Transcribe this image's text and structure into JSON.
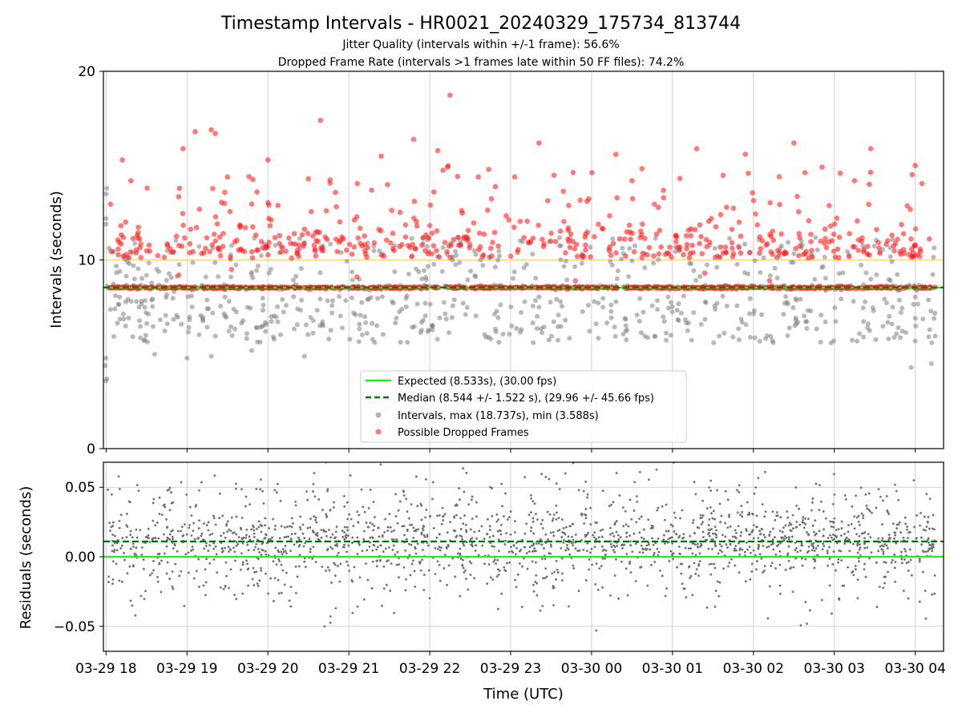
{
  "figure": {
    "title": "Timestamp Intervals - HR0021_20240329_175734_813744",
    "subtitle_jitter": "Jitter Quality (intervals within +/-1 frame): 56.6%",
    "subtitle_dropped": "Dropped Frame Rate (intervals >1 frames late within 50 FF files): 74.2%"
  },
  "chart_data": [
    {
      "type": "scatter",
      "ylabel": "Intervals (seconds)",
      "xlabel": "",
      "ylim": [
        0,
        20
      ],
      "yticks": [
        0,
        10,
        20
      ],
      "grid": "vertical lines at x ticks",
      "legend_position": "lower-center",
      "reference_lines": [
        {
          "name": "Expected (8.533s), (30.00 fps)",
          "y": 8.533,
          "color": "#22ee22",
          "style": "solid"
        },
        {
          "name": "Median (8.544 +/- 1.522 s), (29.96 +/- 45.66 fps)",
          "y": 8.544,
          "color": "#007700",
          "style": "dashed"
        },
        {
          "name": "",
          "y": 10.0,
          "color": "#ffd27f",
          "style": "solid"
        }
      ],
      "series": [
        {
          "name": "Intervals, max (18.737s), min (3.588s)",
          "color": "#808080",
          "marker": "circle",
          "max": 18.737,
          "min": 3.588
        },
        {
          "name": "Possible Dropped Frames",
          "color": "#ff2020",
          "marker": "circle"
        }
      ],
      "notable_points": [
        {
          "x_hours": 4.25,
          "y": 18.737,
          "series": "Possible Dropped Frames"
        },
        {
          "x_hours": 0.0,
          "y": 3.588,
          "series": "Intervals, max (18.737s), min (3.588s)"
        },
        {
          "x_hours": 2.65,
          "y": 17.4,
          "series": "Possible Dropped Frames"
        },
        {
          "x_hours": 1.1,
          "y": 16.8,
          "series": "Possible Dropped Frames"
        }
      ]
    },
    {
      "type": "scatter",
      "ylabel": "Residuals (seconds)",
      "xlabel": "Time (UTC)",
      "ylim": [
        -0.068,
        0.068
      ],
      "yticks": [
        -0.05,
        0.0,
        0.05
      ],
      "ytick_labels": [
        "−0.05",
        "0.00",
        "0.05"
      ],
      "x_start": "2024-03-29 17:57",
      "x_end": "2024-03-30 04:05",
      "xtick_labels": [
        "03-29 18",
        "03-29 19",
        "03-29 20",
        "03-29 21",
        "03-29 22",
        "03-29 23",
        "03-30 00",
        "03-30 01",
        "03-30 02",
        "03-30 03",
        "03-30 04"
      ],
      "grid": "on",
      "reference_lines": [
        {
          "name": "Expected",
          "y": 0.0,
          "color": "#22ee22",
          "style": "solid"
        },
        {
          "name": "Median",
          "y": 0.011,
          "color": "#007700",
          "style": "dashed"
        }
      ],
      "series": [
        {
          "name": "Residuals",
          "color": "#707070",
          "marker": "dot"
        }
      ]
    }
  ]
}
